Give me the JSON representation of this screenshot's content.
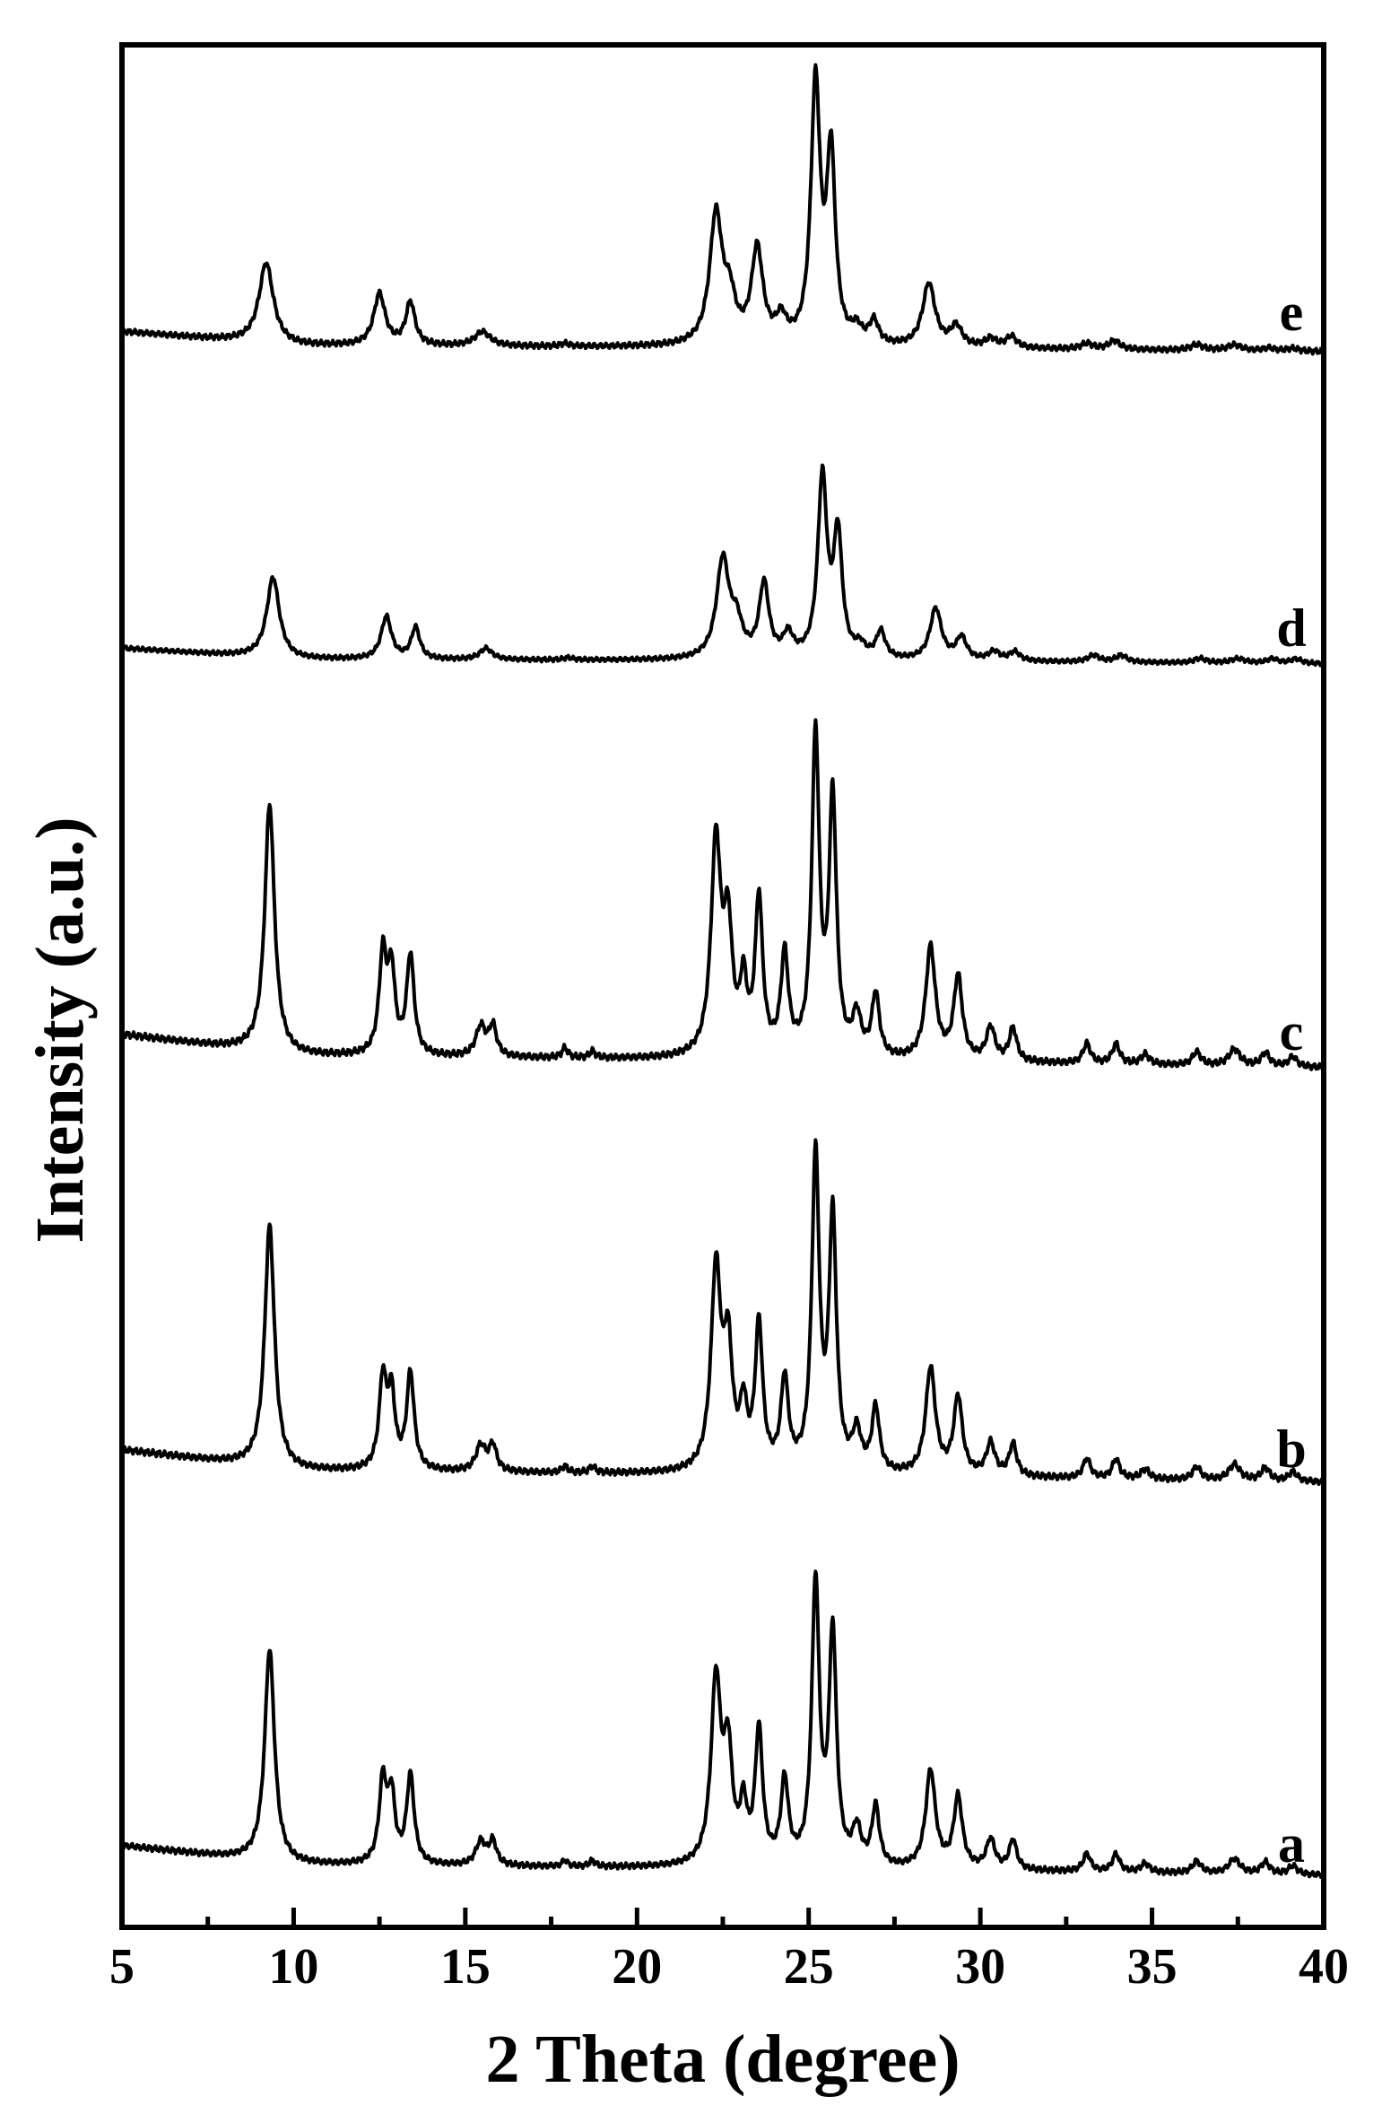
{
  "chart_data": {
    "type": "line",
    "title": "",
    "xlabel": "2 Theta (degree)",
    "ylabel": "Intensity (a.u.)",
    "xlim": [
      5,
      40
    ],
    "x_ticks": [
      5,
      10,
      15,
      20,
      25,
      30,
      35,
      40
    ],
    "y_ticks": [],
    "grid": false,
    "legend": "none (series labelled directly at the right end of each trace)",
    "stacked_offset": true,
    "series": [
      {
        "name": "a",
        "baseline": [
          [
            5,
            0.1
          ],
          [
            10,
            0.035
          ],
          [
            20,
            0.025
          ],
          [
            30,
            0.015
          ],
          [
            40,
            0.0
          ]
        ],
        "peaks": [
          [
            9.3,
            0.72,
            0.17
          ],
          [
            12.6,
            0.28,
            0.13
          ],
          [
            12.85,
            0.22,
            0.12
          ],
          [
            13.4,
            0.3,
            0.13
          ],
          [
            15.45,
            0.08,
            0.17
          ],
          [
            15.8,
            0.08,
            0.13
          ],
          [
            17.9,
            0.02,
            0.1
          ],
          [
            18.7,
            0.02,
            0.1
          ],
          [
            22.3,
            0.62,
            0.17
          ],
          [
            22.65,
            0.36,
            0.15
          ],
          [
            23.1,
            0.18,
            0.12
          ],
          [
            23.55,
            0.45,
            0.13
          ],
          [
            24.3,
            0.28,
            0.13
          ],
          [
            25.2,
            0.95,
            0.13
          ],
          [
            25.7,
            0.78,
            0.13
          ],
          [
            26.4,
            0.12,
            0.15
          ],
          [
            26.95,
            0.2,
            0.13
          ],
          [
            28.55,
            0.33,
            0.17
          ],
          [
            29.35,
            0.24,
            0.15
          ],
          [
            30.3,
            0.1,
            0.15
          ],
          [
            30.95,
            0.1,
            0.13
          ],
          [
            33.1,
            0.06,
            0.13
          ],
          [
            33.95,
            0.06,
            0.13
          ],
          [
            34.8,
            0.03,
            0.15
          ],
          [
            36.3,
            0.04,
            0.15
          ],
          [
            37.4,
            0.05,
            0.2
          ],
          [
            38.3,
            0.04,
            0.15
          ],
          [
            39.1,
            0.03,
            0.15
          ]
        ]
      },
      {
        "name": "b",
        "baseline": [
          [
            5,
            0.1
          ],
          [
            10,
            0.035
          ],
          [
            20,
            0.025
          ],
          [
            30,
            0.015
          ],
          [
            40,
            0.0
          ]
        ],
        "peaks": [
          [
            9.3,
            0.75,
            0.17
          ],
          [
            12.6,
            0.28,
            0.13
          ],
          [
            12.85,
            0.22,
            0.12
          ],
          [
            13.4,
            0.3,
            0.13
          ],
          [
            15.45,
            0.08,
            0.17
          ],
          [
            15.8,
            0.08,
            0.13
          ],
          [
            17.9,
            0.02,
            0.1
          ],
          [
            18.7,
            0.02,
            0.1
          ],
          [
            22.3,
            0.62,
            0.17
          ],
          [
            22.65,
            0.36,
            0.15
          ],
          [
            23.1,
            0.18,
            0.12
          ],
          [
            23.55,
            0.45,
            0.13
          ],
          [
            24.3,
            0.28,
            0.13
          ],
          [
            25.2,
            0.97,
            0.13
          ],
          [
            25.7,
            0.78,
            0.13
          ],
          [
            26.4,
            0.12,
            0.15
          ],
          [
            26.95,
            0.2,
            0.13
          ],
          [
            28.55,
            0.33,
            0.17
          ],
          [
            29.35,
            0.24,
            0.15
          ],
          [
            30.3,
            0.1,
            0.15
          ],
          [
            30.95,
            0.1,
            0.13
          ],
          [
            33.1,
            0.06,
            0.13
          ],
          [
            33.95,
            0.06,
            0.13
          ],
          [
            34.8,
            0.03,
            0.15
          ],
          [
            36.3,
            0.04,
            0.15
          ],
          [
            37.4,
            0.05,
            0.2
          ],
          [
            38.3,
            0.04,
            0.15
          ],
          [
            39.1,
            0.03,
            0.15
          ]
        ]
      },
      {
        "name": "c",
        "baseline": [
          [
            5,
            0.1
          ],
          [
            10,
            0.035
          ],
          [
            20,
            0.025
          ],
          [
            30,
            0.015
          ],
          [
            40,
            0.0
          ]
        ],
        "peaks": [
          [
            9.3,
            0.75,
            0.17
          ],
          [
            12.6,
            0.3,
            0.13
          ],
          [
            12.85,
            0.24,
            0.12
          ],
          [
            13.4,
            0.3,
            0.13
          ],
          [
            15.45,
            0.09,
            0.17
          ],
          [
            15.8,
            0.09,
            0.13
          ],
          [
            17.9,
            0.03,
            0.1
          ],
          [
            18.7,
            0.02,
            0.1
          ],
          [
            22.3,
            0.64,
            0.17
          ],
          [
            22.65,
            0.36,
            0.15
          ],
          [
            23.1,
            0.2,
            0.12
          ],
          [
            23.55,
            0.47,
            0.13
          ],
          [
            24.3,
            0.3,
            0.13
          ],
          [
            25.2,
            0.96,
            0.13
          ],
          [
            25.7,
            0.77,
            0.13
          ],
          [
            26.4,
            0.12,
            0.15
          ],
          [
            26.95,
            0.19,
            0.13
          ],
          [
            28.55,
            0.34,
            0.17
          ],
          [
            29.35,
            0.25,
            0.15
          ],
          [
            30.3,
            0.1,
            0.15
          ],
          [
            30.95,
            0.1,
            0.13
          ],
          [
            33.1,
            0.06,
            0.13
          ],
          [
            33.95,
            0.06,
            0.13
          ],
          [
            34.8,
            0.03,
            0.15
          ],
          [
            36.3,
            0.04,
            0.15
          ],
          [
            37.4,
            0.05,
            0.2
          ],
          [
            38.3,
            0.04,
            0.15
          ],
          [
            39.1,
            0.03,
            0.15
          ]
        ]
      },
      {
        "name": "d",
        "baseline": [
          [
            5,
            0.07
          ],
          [
            10,
            0.02
          ],
          [
            20,
            0.015
          ],
          [
            30,
            0.01
          ],
          [
            40,
            0.0
          ]
        ],
        "peaks": [
          [
            9.4,
            0.36,
            0.22
          ],
          [
            12.7,
            0.19,
            0.18
          ],
          [
            13.55,
            0.14,
            0.15
          ],
          [
            15.6,
            0.05,
            0.22
          ],
          [
            18.0,
            0.01,
            0.15
          ],
          [
            22.5,
            0.44,
            0.22
          ],
          [
            22.9,
            0.14,
            0.2
          ],
          [
            23.7,
            0.33,
            0.17
          ],
          [
            24.4,
            0.1,
            0.17
          ],
          [
            25.4,
            0.8,
            0.16
          ],
          [
            25.85,
            0.54,
            0.15
          ],
          [
            26.5,
            0.05,
            0.18
          ],
          [
            27.1,
            0.12,
            0.16
          ],
          [
            28.7,
            0.23,
            0.2
          ],
          [
            29.45,
            0.1,
            0.18
          ],
          [
            30.4,
            0.04,
            0.2
          ],
          [
            31.0,
            0.04,
            0.18
          ],
          [
            33.3,
            0.03,
            0.2
          ],
          [
            34.1,
            0.03,
            0.2
          ],
          [
            36.4,
            0.02,
            0.2
          ],
          [
            37.5,
            0.02,
            0.25
          ],
          [
            38.5,
            0.02,
            0.2
          ],
          [
            39.2,
            0.02,
            0.2
          ]
        ]
      },
      {
        "name": "e",
        "baseline": [
          [
            5,
            0.07
          ],
          [
            10,
            0.02
          ],
          [
            20,
            0.015
          ],
          [
            30,
            0.01
          ],
          [
            40,
            0.0
          ]
        ],
        "peaks": [
          [
            9.2,
            0.28,
            0.25
          ],
          [
            12.5,
            0.18,
            0.2
          ],
          [
            13.4,
            0.15,
            0.16
          ],
          [
            15.5,
            0.05,
            0.28
          ],
          [
            17.9,
            0.01,
            0.15
          ],
          [
            22.3,
            0.45,
            0.22
          ],
          [
            22.7,
            0.14,
            0.2
          ],
          [
            23.5,
            0.33,
            0.2
          ],
          [
            24.2,
            0.08,
            0.18
          ],
          [
            25.2,
            0.9,
            0.16
          ],
          [
            25.65,
            0.65,
            0.15
          ],
          [
            26.4,
            0.05,
            0.18
          ],
          [
            26.9,
            0.08,
            0.16
          ],
          [
            28.5,
            0.22,
            0.22
          ],
          [
            29.3,
            0.07,
            0.2
          ],
          [
            30.3,
            0.03,
            0.2
          ],
          [
            30.9,
            0.04,
            0.18
          ],
          [
            33.1,
            0.02,
            0.2
          ],
          [
            33.9,
            0.03,
            0.2
          ],
          [
            36.3,
            0.02,
            0.22
          ],
          [
            37.4,
            0.02,
            0.25
          ],
          [
            38.4,
            0.01,
            0.2
          ],
          [
            39.1,
            0.01,
            0.2
          ]
        ]
      }
    ]
  }
}
